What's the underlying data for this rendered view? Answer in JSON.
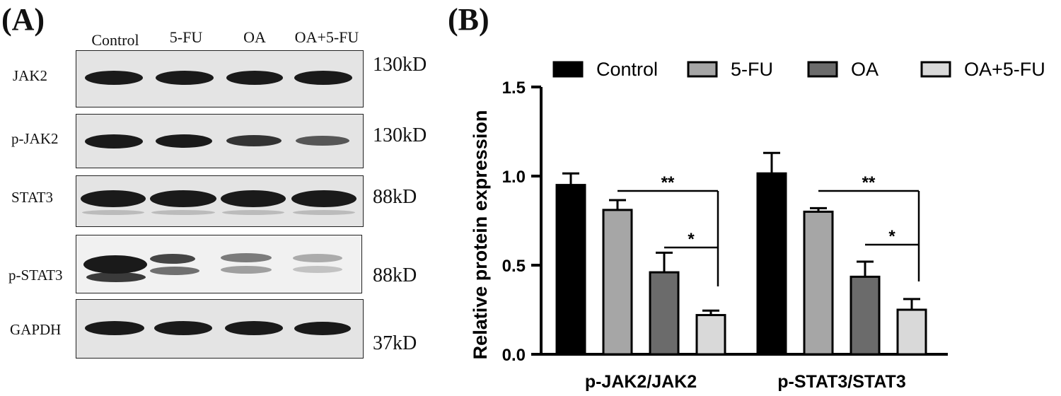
{
  "panel_a": {
    "label": "(A)",
    "lanes": [
      "Control",
      "5-FU",
      "OA",
      "OA+5-FU"
    ],
    "rows": [
      {
        "name": "JAK2",
        "mw": "130kD"
      },
      {
        "name": "p-JAK2",
        "mw": "130kD"
      },
      {
        "name": "STAT3",
        "mw": "88kD"
      },
      {
        "name": "p-STAT3",
        "mw": "88kD"
      },
      {
        "name": "GAPDH",
        "mw": "37kD"
      }
    ]
  },
  "panel_b": {
    "label": "(B)"
  },
  "chart_data": {
    "type": "bar",
    "categories": [
      "p-JAK2/JAK2",
      "p-STAT3/STAT3"
    ],
    "series": [
      {
        "name": "Control",
        "values": [
          0.95,
          1.015
        ],
        "errors": [
          0.065,
          0.115
        ],
        "color": "#000000"
      },
      {
        "name": "5-FU",
        "values": [
          0.81,
          0.8
        ],
        "errors": [
          0.055,
          0.02
        ],
        "color": "#a6a6a6"
      },
      {
        "name": "OA",
        "values": [
          0.46,
          0.435
        ],
        "errors": [
          0.11,
          0.085
        ],
        "color": "#6b6b6b"
      },
      {
        "name": "OA+5-FU",
        "values": [
          0.22,
          0.25
        ],
        "errors": [
          0.025,
          0.06
        ],
        "color": "#d9d9d9"
      }
    ],
    "ylabel": "Relative protein expression",
    "ylim": [
      0,
      1.5
    ],
    "yticks": [
      "0.0",
      "0.5",
      "1.0",
      "1.5"
    ],
    "legend": "top",
    "annotations": [
      {
        "category": 0,
        "from_series": 1,
        "to_series": 3,
        "text": "**"
      },
      {
        "category": 0,
        "from_series": 2,
        "to_series": 3,
        "text": "*"
      },
      {
        "category": 1,
        "from_series": 1,
        "to_series": 3,
        "text": "**"
      },
      {
        "category": 1,
        "from_series": 2,
        "to_series": 3,
        "text": "*"
      }
    ]
  }
}
